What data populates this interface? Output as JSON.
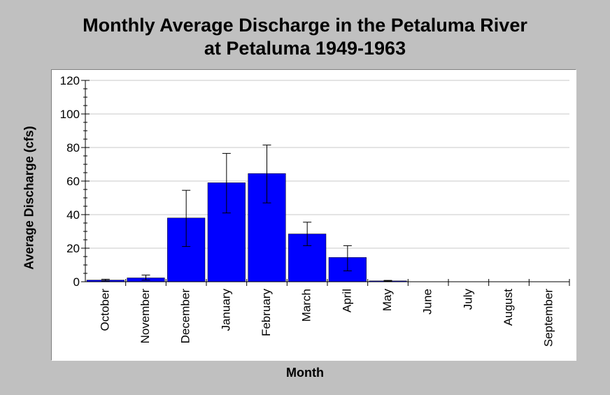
{
  "chart_data": {
    "type": "bar",
    "title_lines": [
      "Monthly Average Discharge in the Petaluma River",
      "at Petaluma 1949-1963"
    ],
    "xlabel": "Month",
    "ylabel": "Average Discharge (cfs)",
    "ylim": [
      0,
      120
    ],
    "yticks": [
      0,
      20,
      40,
      60,
      80,
      100,
      120
    ],
    "grid": true,
    "categories": [
      "October",
      "November",
      "December",
      "January",
      "February",
      "March",
      "April",
      "May",
      "June",
      "July",
      "August",
      "September"
    ],
    "values": [
      1,
      2.3,
      38,
      59,
      64.5,
      28.5,
      14.5,
      0.5,
      0,
      0,
      0,
      0
    ],
    "error_low": [
      0.5,
      1,
      21,
      41,
      47,
      21.5,
      6.5,
      0.2,
      null,
      null,
      null,
      null
    ],
    "error_high": [
      1.5,
      4,
      54.5,
      76.5,
      81.5,
      35.5,
      21.5,
      0.8,
      null,
      null,
      null,
      null
    ],
    "bar_color": "#0000ff"
  }
}
